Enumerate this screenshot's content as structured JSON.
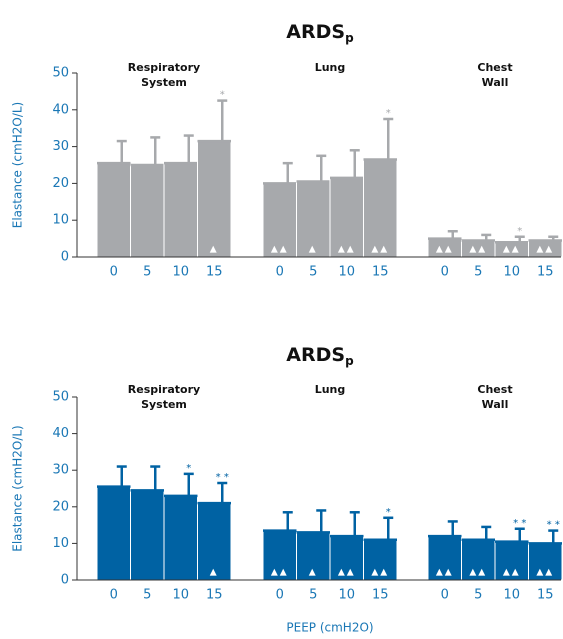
{
  "chart_data": [
    {
      "type": "bar",
      "title": "ARDS",
      "title_subscript": "p",
      "ylabel": "Elastance (cmH2O/L)",
      "ylim": [
        0,
        50
      ],
      "yticks": [
        0,
        10,
        20,
        30,
        40,
        50
      ],
      "color": "#a7a9ac",
      "groups": [
        {
          "name": "Respiratory System",
          "categories": [
            "0",
            "5",
            "10",
            "15"
          ],
          "values": [
            25.5,
            25,
            25.5,
            31.5
          ],
          "errors": [
            6,
            7.5,
            7.5,
            11
          ],
          "stars": [
            null,
            null,
            null,
            "*"
          ],
          "triangles": [
            null,
            null,
            null,
            "▲"
          ]
        },
        {
          "name": "Lung",
          "categories": [
            "0",
            "5",
            "10",
            "15"
          ],
          "values": [
            20,
            20.5,
            21.5,
            26.5
          ],
          "errors": [
            5.5,
            7,
            7.5,
            11
          ],
          "stars": [
            null,
            null,
            null,
            "*"
          ],
          "triangles": [
            "▲▲",
            "▲",
            "▲▲",
            "▲▲"
          ]
        },
        {
          "name": "Chest Wall",
          "categories": [
            "0",
            "5",
            "10",
            "15"
          ],
          "values": [
            5,
            4.5,
            4,
            4.5
          ],
          "errors": [
            2,
            1.5,
            1.5,
            1
          ],
          "stars": [
            null,
            null,
            "*",
            null
          ],
          "triangles": [
            "▲▲",
            "▲▲",
            "▲▲",
            "▲▲"
          ]
        }
      ]
    },
    {
      "type": "bar",
      "title": "ARDS",
      "title_subscript": "p",
      "ylabel": "Elastance (cmH2O/L)",
      "xlabel": "PEEP (cmH2O)",
      "ylim": [
        0,
        50
      ],
      "yticks": [
        0,
        10,
        20,
        30,
        40,
        50
      ],
      "color": "#0062a3",
      "groups": [
        {
          "name": "Respiratory System",
          "categories": [
            "0",
            "5",
            "10",
            "15"
          ],
          "values": [
            25.5,
            24.5,
            23,
            21
          ],
          "errors": [
            5.5,
            6.5,
            6,
            5.5
          ],
          "stars": [
            null,
            null,
            "*",
            "* *"
          ],
          "triangles": [
            null,
            null,
            null,
            "▲"
          ]
        },
        {
          "name": "Lung",
          "categories": [
            "0",
            "5",
            "10",
            "15"
          ],
          "values": [
            13.5,
            13,
            12,
            11
          ],
          "errors": [
            5,
            6,
            6.5,
            6
          ],
          "stars": [
            null,
            null,
            null,
            "*"
          ],
          "triangles": [
            "▲▲",
            "▲",
            "▲▲",
            "▲▲"
          ]
        },
        {
          "name": "Chest Wall",
          "categories": [
            "0",
            "5",
            "10",
            "15"
          ],
          "values": [
            12,
            11,
            10.5,
            10
          ],
          "errors": [
            4,
            3.5,
            3.5,
            3.5
          ],
          "stars": [
            null,
            null,
            "* *",
            "* *"
          ],
          "triangles": [
            "▲▲",
            "▲▲",
            "▲▲",
            "▲▲"
          ]
        }
      ]
    }
  ]
}
